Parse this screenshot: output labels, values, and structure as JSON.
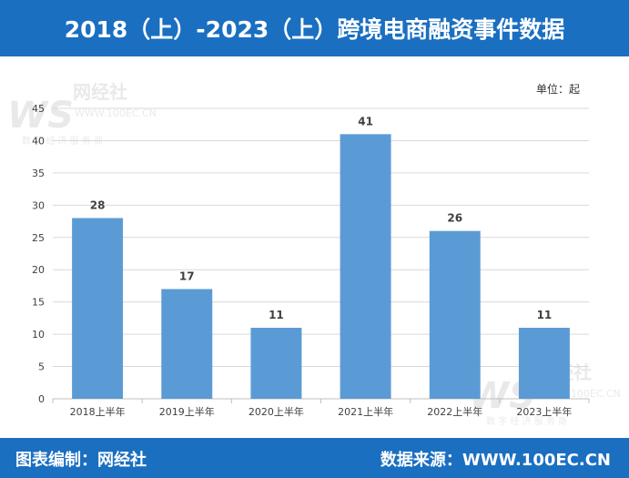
{
  "header": {
    "title": "2018（上）-2023（上）跨境电商融资事件数据"
  },
  "footer": {
    "left": "图表编制：网经社",
    "right": "数据来源：WWW.100EC.CN"
  },
  "watermark": {
    "logo": "WS",
    "brand": "网经社",
    "url": "WWW.100EC.CN",
    "tagline": "数 字 经 济 服 务 商"
  },
  "colors": {
    "header_bg": "#1a6fc0",
    "bar": "#5b9bd5",
    "grid": "#d9d9d9"
  },
  "chart_data": {
    "type": "bar",
    "unit_label": "单位：起",
    "categories": [
      "2018上半年",
      "2019上半年",
      "2020上半年",
      "2021上半年",
      "2022上半年",
      "2023上半年"
    ],
    "values": [
      28,
      17,
      11,
      41,
      26,
      11
    ],
    "yticks": [
      0,
      5,
      10,
      15,
      20,
      25,
      30,
      35,
      40,
      45
    ],
    "ylim": [
      0,
      45
    ],
    "grid": true,
    "legend": "none"
  }
}
